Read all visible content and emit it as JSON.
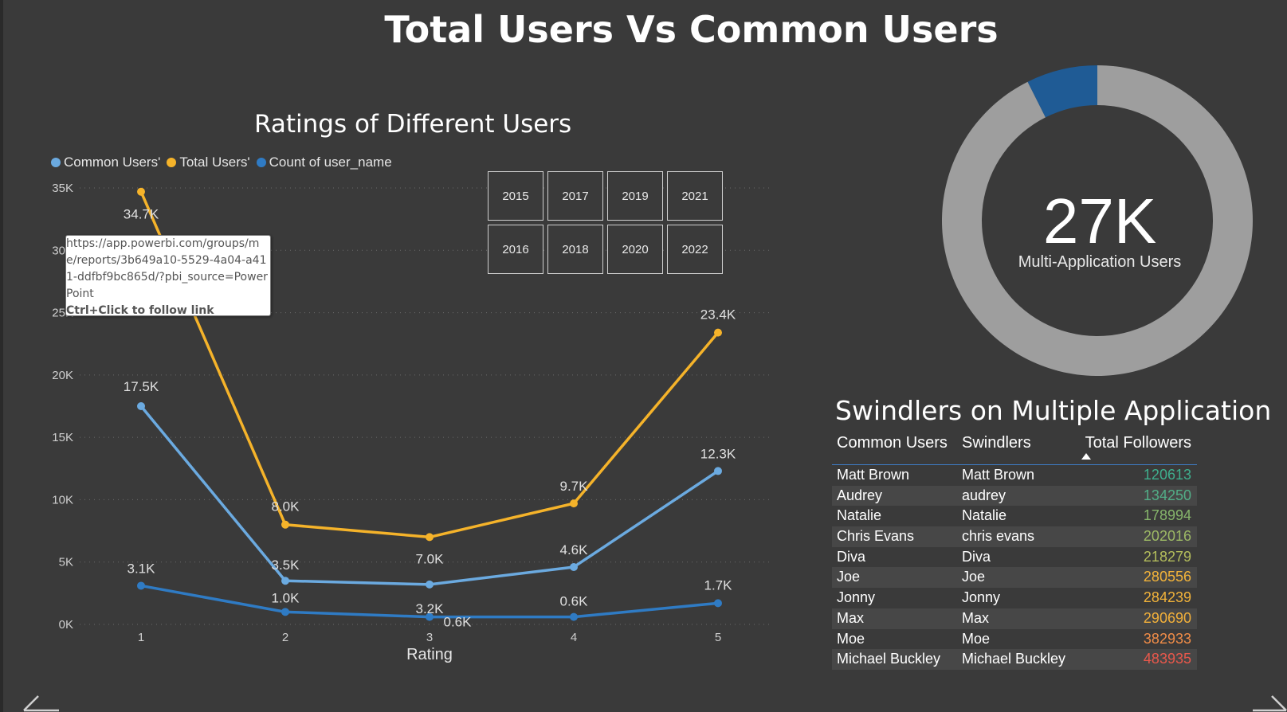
{
  "page": {
    "title": "Total Users Vs Common Users"
  },
  "line_chart": {
    "title": "Ratings of Different Users"
  },
  "chart_data": {
    "type": "line",
    "title": "Ratings of Different Users",
    "xlabel": "Rating",
    "ylabel": "",
    "x": [
      1,
      2,
      3,
      4,
      5
    ],
    "x_tick_labels": [
      "1",
      "2",
      "3",
      "4",
      "5"
    ],
    "y_tick_labels": [
      "0K",
      "5K",
      "10K",
      "15K",
      "20K",
      "25K",
      "30K",
      "35K"
    ],
    "ylim": [
      0,
      35000
    ],
    "grid": true,
    "legend_position": "top-left",
    "series": [
      {
        "name": "Common Users'",
        "color": "#6baae0",
        "values": [
          17500,
          3500,
          3200,
          4600,
          12300
        ],
        "labels": [
          "17.5K",
          "3.5K",
          "3.2K",
          "4.6K",
          "12.3K"
        ]
      },
      {
        "name": "Total Users'",
        "color": "#f5b32a",
        "values": [
          34700,
          8000,
          7000,
          9700,
          23400
        ],
        "labels": [
          "34.7K",
          "8.0K",
          "7.0K",
          "9.7K",
          "23.4K"
        ]
      },
      {
        "name": "Count of user_name",
        "color": "#2f7bc4",
        "values": [
          3100,
          1000,
          600,
          600,
          1700
        ],
        "labels": [
          "3.1K",
          "1.0K",
          "0.6K",
          "0.6K",
          "1.7K"
        ]
      }
    ]
  },
  "year_slicer": {
    "years": [
      "2015",
      "2017",
      "2019",
      "2021",
      "2016",
      "2018",
      "2020",
      "2022"
    ]
  },
  "tooltip": {
    "url": "https://app.powerbi.com/groups/me/reports/3b649a10-5529-4a04-a411-ddfbf9bc865d/?pbi_source=PowerPoint",
    "hint": "Ctrl+Click to follow link"
  },
  "donut": {
    "value": "27K",
    "label": "Multi-Application Users",
    "highlight_fraction": 0.074,
    "colors": {
      "ring": "#9e9e9e",
      "highlight": "#1f5b95"
    }
  },
  "swindlers_table": {
    "title": "Swindlers on Multiple Application",
    "headers": [
      "Common Users",
      "Swindlers",
      "Total Followers"
    ],
    "rows": [
      {
        "common": "Matt Brown",
        "swindler": "Matt Brown",
        "followers": "120613",
        "color": "#3fae8d"
      },
      {
        "common": "Audrey",
        "swindler": "audrey",
        "followers": "134250",
        "color": "#52ae87"
      },
      {
        "common": "Natalie",
        "swindler": "Natalie",
        "followers": "178994",
        "color": "#86b56b"
      },
      {
        "common": "Chris Evans",
        "swindler": "chris evans",
        "followers": "202016",
        "color": "#9db965"
      },
      {
        "common": "Diva",
        "swindler": "Diva",
        "followers": "218279",
        "color": "#b4bd5c"
      },
      {
        "common": "Joe",
        "swindler": "Joe",
        "followers": "280556",
        "color": "#f2b33a"
      },
      {
        "common": "Jonny",
        "swindler": "Jonny",
        "followers": "284239",
        "color": "#f2b33a"
      },
      {
        "common": "Max",
        "swindler": "Max",
        "followers": "290690",
        "color": "#f2b03a"
      },
      {
        "common": "Moe",
        "swindler": "Moe",
        "followers": "382933",
        "color": "#f08c48"
      },
      {
        "common": "Michael Buckley",
        "swindler": "Michael Buckley",
        "followers": "483935",
        "color": "#e8584b"
      }
    ]
  }
}
